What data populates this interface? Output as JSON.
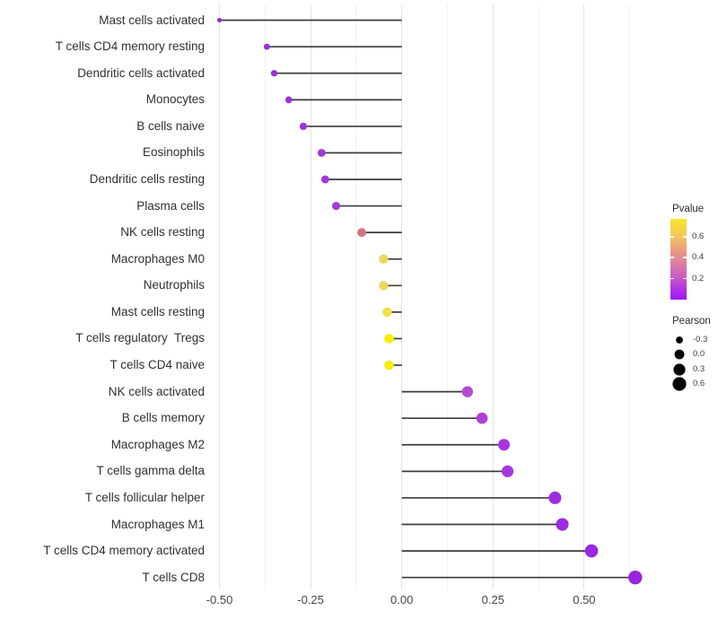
{
  "chart_data": {
    "type": "lollipop",
    "title": "",
    "xlabel": "",
    "ylabel": "",
    "grid": "vertical-only",
    "xlim": [
      -0.52,
      0.675
    ],
    "x_tick_labels": [
      "-0.50",
      "-0.25",
      "0.00",
      "0.25",
      "0.50"
    ],
    "x_tick_values": [
      -0.5,
      -0.25,
      0,
      0.25,
      0.5
    ],
    "rows": [
      {
        "label": "Mast cells activated",
        "pearson": -0.5,
        "pvalue": 0.03,
        "color": "#8b28cc"
      },
      {
        "label": "T cells CD4 memory resting",
        "pearson": -0.37,
        "pvalue": 0.07,
        "color": "#9530d6"
      },
      {
        "label": "Dendritic cells activated",
        "pearson": -0.35,
        "pvalue": 0.07,
        "color": "#9530d6"
      },
      {
        "label": "Monocytes",
        "pearson": -0.31,
        "pvalue": 0.08,
        "color": "#9932d8"
      },
      {
        "label": "B cells naive",
        "pearson": -0.27,
        "pvalue": 0.09,
        "color": "#9c33da"
      },
      {
        "label": "Eosinophils",
        "pearson": -0.22,
        "pvalue": 0.1,
        "color": "#a038dc"
      },
      {
        "label": "Dendritic cells resting",
        "pearson": -0.21,
        "pvalue": 0.1,
        "color": "#a238dc"
      },
      {
        "label": "Plasma cells",
        "pearson": -0.18,
        "pvalue": 0.11,
        "color": "#a43adb"
      },
      {
        "label": "NK cells resting",
        "pearson": -0.11,
        "pvalue": 0.45,
        "color": "#d4717f"
      },
      {
        "label": "Macrophages M0",
        "pearson": -0.05,
        "pvalue": 0.64,
        "color": "#edd75a"
      },
      {
        "label": "Neutrophils",
        "pearson": -0.05,
        "pvalue": 0.64,
        "color": "#edd75a"
      },
      {
        "label": "Mast cells resting",
        "pearson": -0.04,
        "pvalue": 0.68,
        "color": "#f0e146"
      },
      {
        "label": "T cells regulatory  Tregs",
        "pearson": -0.035,
        "pvalue": 0.77,
        "color": "#f8f000"
      },
      {
        "label": "T cells CD4 naive",
        "pearson": -0.035,
        "pvalue": 0.74,
        "color": "#f6ee0c"
      },
      {
        "label": "NK cells activated",
        "pearson": 0.18,
        "pvalue": 0.2,
        "color": "#b44bd2"
      },
      {
        "label": "B cells memory",
        "pearson": 0.22,
        "pvalue": 0.15,
        "color": "#ac3fd8"
      },
      {
        "label": "Macrophages M2",
        "pearson": 0.28,
        "pvalue": 0.12,
        "color": "#a637dc"
      },
      {
        "label": "T cells gamma delta",
        "pearson": 0.29,
        "pvalue": 0.12,
        "color": "#a637dc"
      },
      {
        "label": "T cells follicular helper",
        "pearson": 0.42,
        "pvalue": 0.06,
        "color": "#9d2cde"
      },
      {
        "label": "Macrophages M1",
        "pearson": 0.44,
        "pvalue": 0.06,
        "color": "#9d2cde"
      },
      {
        "label": "T cells CD4 memory activated",
        "pearson": 0.52,
        "pvalue": 0.04,
        "color": "#9827e0"
      },
      {
        "label": "T cells CD8",
        "pearson": 0.64,
        "pvalue": 0.03,
        "color": "#9a24e2"
      }
    ],
    "legend_pvalue": {
      "title": "Pvalue",
      "tick_labels": [
        "0.6",
        "0.4",
        "0.2"
      ],
      "tick_values": [
        0.6,
        0.4,
        0.2
      ],
      "bar_range": [
        0.0,
        0.77
      ],
      "color_top": "#f9e829",
      "color_bottom": "#9d18f2"
    },
    "legend_pearson": {
      "title": "Pearson",
      "entries": [
        {
          "label": "-0.3",
          "value": -0.3
        },
        {
          "label": "0.0",
          "value": 0.0
        },
        {
          "label": "0.3",
          "value": 0.3
        },
        {
          "label": "0.6",
          "value": 0.6
        }
      ],
      "dot_color": "#000000"
    },
    "stem_color": "#3c3c3c"
  }
}
